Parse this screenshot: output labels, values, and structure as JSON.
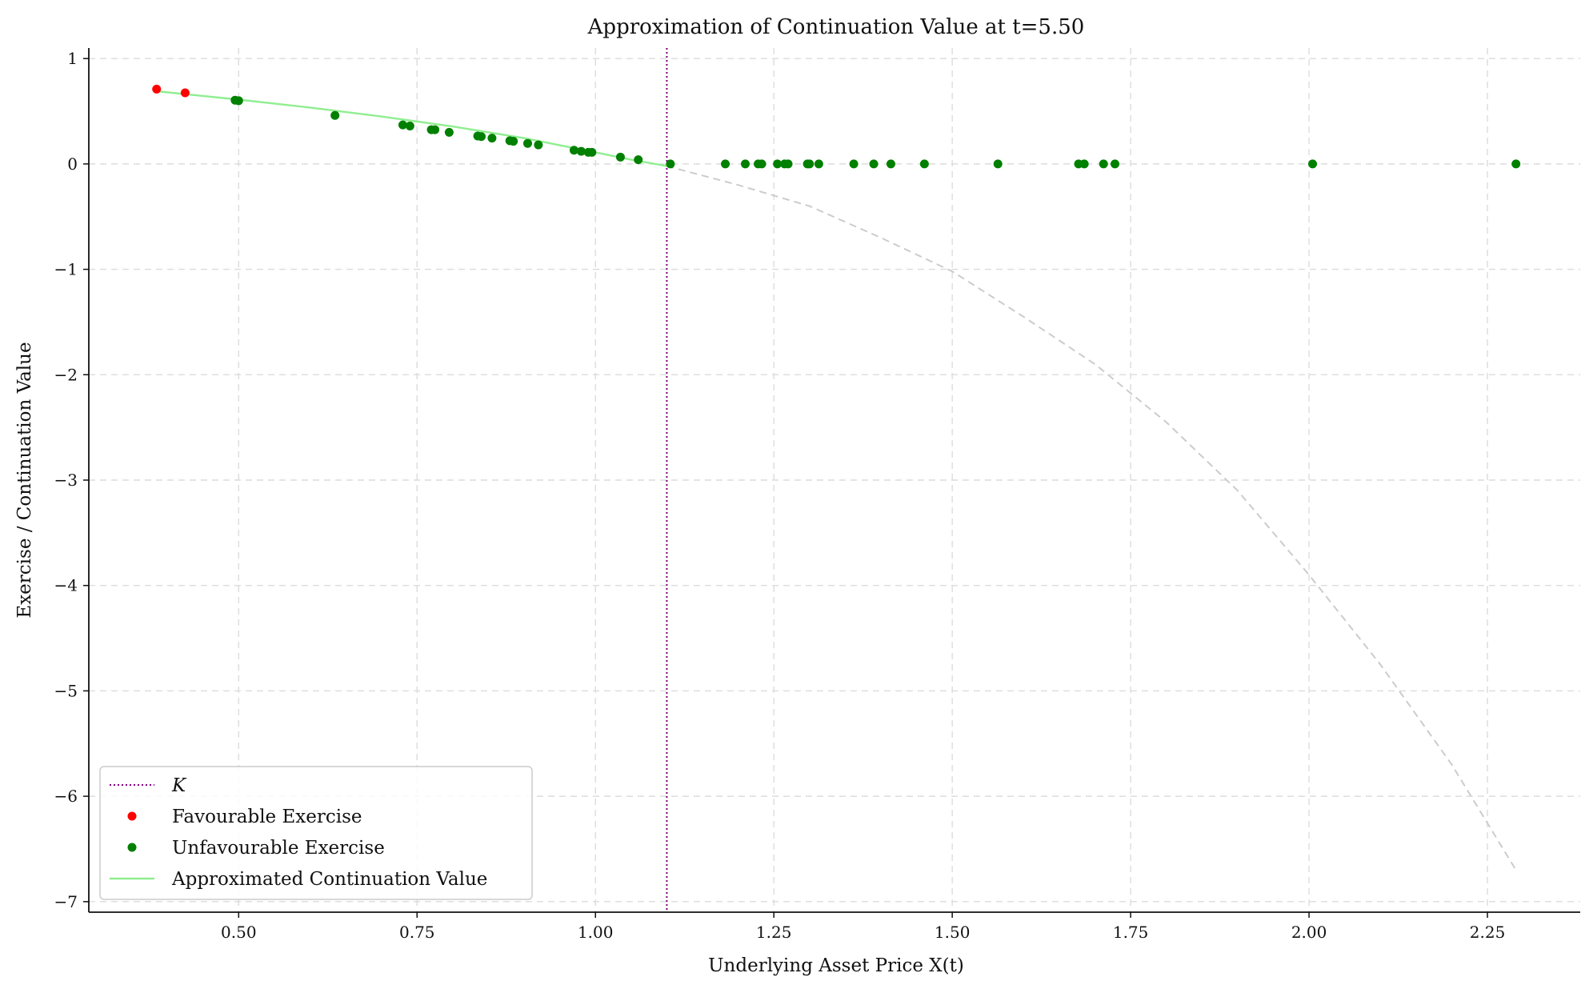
{
  "chart_data": {
    "type": "scatter",
    "title": "Approximation of Continuation Value at t=5.50",
    "xlabel": "Underlying Asset Price X(t)",
    "ylabel": "Exercise / Continuation Value",
    "xlim": [
      0.29,
      2.38
    ],
    "ylim": [
      -7.1,
      1.1
    ],
    "xticks": [
      0.5,
      0.75,
      1.0,
      1.25,
      1.5,
      1.75,
      2.0,
      2.25
    ],
    "xtick_labels": [
      "0.50",
      "0.75",
      "1.00",
      "1.25",
      "1.50",
      "1.75",
      "2.00",
      "2.25"
    ],
    "yticks": [
      1,
      0,
      -1,
      -2,
      -3,
      -4,
      -5,
      -6,
      -7
    ],
    "ytick_labels": [
      "1",
      "0",
      "−1",
      "−2",
      "−3",
      "−4",
      "−5",
      "−6",
      "−7"
    ],
    "grid": true,
    "legend_position": "lower-left",
    "strike_K": 1.1,
    "colors": {
      "favourable": "#ff0000",
      "unfavourable": "#008000",
      "continuation": "#90ee90",
      "extrapolation": "#cccccc",
      "strike": "#800080"
    },
    "legend": [
      {
        "label": "K",
        "kind": "dotted-line",
        "color": "#800080"
      },
      {
        "label": "Favourable Exercise",
        "kind": "dot",
        "color": "#ff0000"
      },
      {
        "label": "Unfavourable Exercise",
        "kind": "dot",
        "color": "#008000"
      },
      {
        "label": "Approximated Continuation Value",
        "kind": "line",
        "color": "#90ee90"
      }
    ],
    "series": [
      {
        "name": "Favourable Exercise",
        "points": [
          [
            0.385,
            0.71
          ],
          [
            0.425,
            0.675
          ]
        ]
      },
      {
        "name": "Unfavourable Exercise",
        "points": [
          [
            0.495,
            0.605
          ],
          [
            0.5,
            0.6
          ],
          [
            0.635,
            0.46
          ],
          [
            0.73,
            0.37
          ],
          [
            0.74,
            0.36
          ],
          [
            0.77,
            0.325
          ],
          [
            0.775,
            0.325
          ],
          [
            0.795,
            0.3
          ],
          [
            0.835,
            0.265
          ],
          [
            0.84,
            0.26
          ],
          [
            0.855,
            0.245
          ],
          [
            0.88,
            0.22
          ],
          [
            0.885,
            0.215
          ],
          [
            0.905,
            0.195
          ],
          [
            0.92,
            0.18
          ],
          [
            0.97,
            0.13
          ],
          [
            0.98,
            0.12
          ],
          [
            0.99,
            0.11
          ],
          [
            0.995,
            0.11
          ],
          [
            1.035,
            0.065
          ],
          [
            1.06,
            0.04
          ],
          [
            1.105,
            0
          ],
          [
            1.182,
            0
          ],
          [
            1.21,
            0
          ],
          [
            1.228,
            0
          ],
          [
            1.233,
            0
          ],
          [
            1.255,
            0
          ],
          [
            1.265,
            0
          ],
          [
            1.27,
            0
          ],
          [
            1.297,
            0
          ],
          [
            1.3,
            0
          ],
          [
            1.313,
            0
          ],
          [
            1.362,
            0
          ],
          [
            1.39,
            0
          ],
          [
            1.414,
            0
          ],
          [
            1.461,
            0
          ],
          [
            1.564,
            0
          ],
          [
            1.677,
            0
          ],
          [
            1.685,
            0
          ],
          [
            1.712,
            0
          ],
          [
            1.728,
            0
          ],
          [
            2.005,
            0
          ],
          [
            2.29,
            0
          ]
        ]
      },
      {
        "name": "Approximated Continuation Value",
        "points": [
          [
            0.385,
            0.69
          ],
          [
            0.45,
            0.645
          ],
          [
            0.5,
            0.61
          ],
          [
            0.6,
            0.535
          ],
          [
            0.7,
            0.45
          ],
          [
            0.8,
            0.355
          ],
          [
            0.9,
            0.245
          ],
          [
            1.0,
            0.11
          ],
          [
            1.05,
            0.04
          ],
          [
            1.1,
            -0.02
          ]
        ]
      },
      {
        "name": "extrapolation",
        "points": [
          [
            1.1,
            -0.02
          ],
          [
            1.2,
            -0.2
          ],
          [
            1.3,
            -0.4
          ],
          [
            1.4,
            -0.7
          ],
          [
            1.5,
            -1.02
          ],
          [
            1.6,
            -1.45
          ],
          [
            1.7,
            -1.9
          ],
          [
            1.8,
            -2.45
          ],
          [
            1.9,
            -3.1
          ],
          [
            2.0,
            -3.9
          ],
          [
            2.1,
            -4.75
          ],
          [
            2.2,
            -5.7
          ],
          [
            2.29,
            -6.7
          ]
        ]
      }
    ]
  }
}
